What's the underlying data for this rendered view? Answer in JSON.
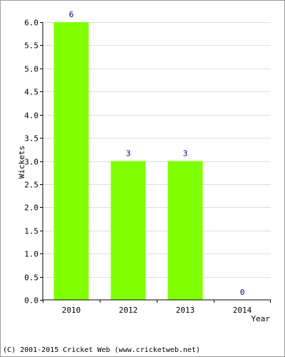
{
  "chart_data": {
    "type": "bar",
    "categories": [
      "2010",
      "2012",
      "2013",
      "2014"
    ],
    "values": [
      6,
      3,
      3,
      0
    ],
    "data_labels": [
      "6",
      "3",
      "3",
      "0"
    ],
    "title": "",
    "xlabel": "Year",
    "ylabel": "Wickets",
    "ylim": [
      0,
      6
    ],
    "yticks": [
      "0.0",
      "0.5",
      "1.0",
      "1.5",
      "2.0",
      "2.5",
      "3.0",
      "3.5",
      "4.0",
      "4.5",
      "5.0",
      "5.5",
      "6.0"
    ],
    "grid": true,
    "bar_color": "#80ff00",
    "label_color": "#00008b",
    "grid_color": "#dddddd"
  },
  "footer": {
    "text": "(C) 2001-2015 Cricket Web (www.cricketweb.net)"
  }
}
